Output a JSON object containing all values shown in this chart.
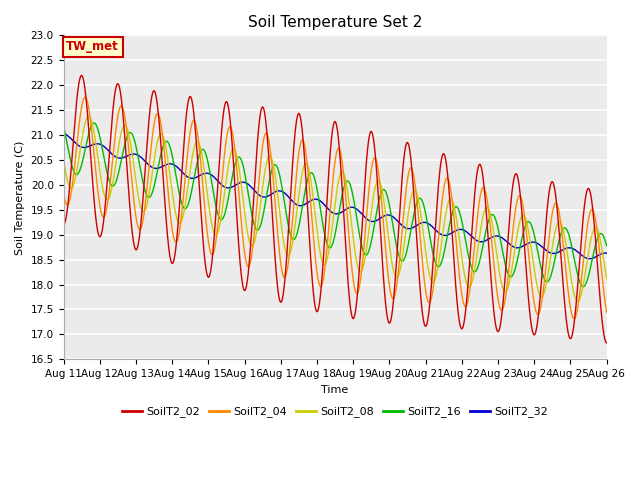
{
  "title": "Soil Temperature Set 2",
  "xlabel": "Time",
  "ylabel": "Soil Temperature (C)",
  "ylim": [
    16.5,
    23.0
  ],
  "yticks": [
    16.5,
    17.0,
    17.5,
    18.0,
    18.5,
    19.0,
    19.5,
    20.0,
    20.5,
    21.0,
    21.5,
    22.0,
    22.5,
    23.0
  ],
  "xtick_labels": [
    "Aug 11",
    "Aug 12",
    "Aug 13",
    "Aug 14",
    "Aug 15",
    "Aug 16",
    "Aug 17",
    "Aug 18",
    "Aug 19",
    "Aug 20",
    "Aug 21",
    "Aug 22",
    "Aug 23",
    "Aug 24",
    "Aug 25",
    "Aug 26"
  ],
  "series_colors": {
    "SoilT2_02": "#cc0000",
    "SoilT2_04": "#ff8800",
    "SoilT2_08": "#cccc00",
    "SoilT2_16": "#00bb00",
    "SoilT2_32": "#0000cc"
  },
  "series_order": [
    "SoilT2_32",
    "SoilT2_16",
    "SoilT2_08",
    "SoilT2_04",
    "SoilT2_02"
  ],
  "legend_order": [
    "SoilT2_02",
    "SoilT2_04",
    "SoilT2_08",
    "SoilT2_16",
    "SoilT2_32"
  ],
  "legend_label": "TW_met",
  "plot_bg_color": "#ebebeb",
  "fig_bg_color": "#ffffff",
  "grid_color": "#ffffff",
  "linewidth": 1.0,
  "title_fontsize": 11,
  "axis_label_fontsize": 8,
  "tick_fontsize": 7.5,
  "legend_fontsize": 8
}
